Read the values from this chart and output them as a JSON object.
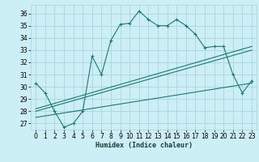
{
  "xlabel": "Humidex (Indice chaleur)",
  "background_color": "#cceef5",
  "grid_color": "#aad4de",
  "line_color": "#1a7a6e",
  "xlim": [
    -0.5,
    23.5
  ],
  "ylim": [
    26.5,
    36.7
  ],
  "xticks": [
    0,
    1,
    2,
    3,
    4,
    5,
    6,
    7,
    8,
    9,
    10,
    11,
    12,
    13,
    14,
    15,
    16,
    17,
    18,
    19,
    20,
    21,
    22,
    23
  ],
  "yticks": [
    27,
    28,
    29,
    30,
    31,
    32,
    33,
    34,
    35,
    36
  ],
  "main_line": {
    "x": [
      0,
      1,
      2,
      3,
      4,
      5,
      6,
      7,
      8,
      9,
      10,
      11,
      12,
      13,
      14,
      15,
      16,
      17,
      18,
      19,
      20,
      21,
      22,
      23
    ],
    "y": [
      30.3,
      29.5,
      28.0,
      26.7,
      27.0,
      28.0,
      32.5,
      31.0,
      33.8,
      35.1,
      35.2,
      36.2,
      35.5,
      35.0,
      35.0,
      35.5,
      35.0,
      34.3,
      33.2,
      33.3,
      33.3,
      31.0,
      29.5,
      30.5
    ]
  },
  "linear_lines": [
    {
      "x": [
        0,
        23
      ],
      "y": [
        28.2,
        33.3
      ]
    },
    {
      "x": [
        0,
        23
      ],
      "y": [
        28.0,
        33.0
      ]
    },
    {
      "x": [
        0,
        23
      ],
      "y": [
        27.5,
        30.3
      ]
    }
  ]
}
